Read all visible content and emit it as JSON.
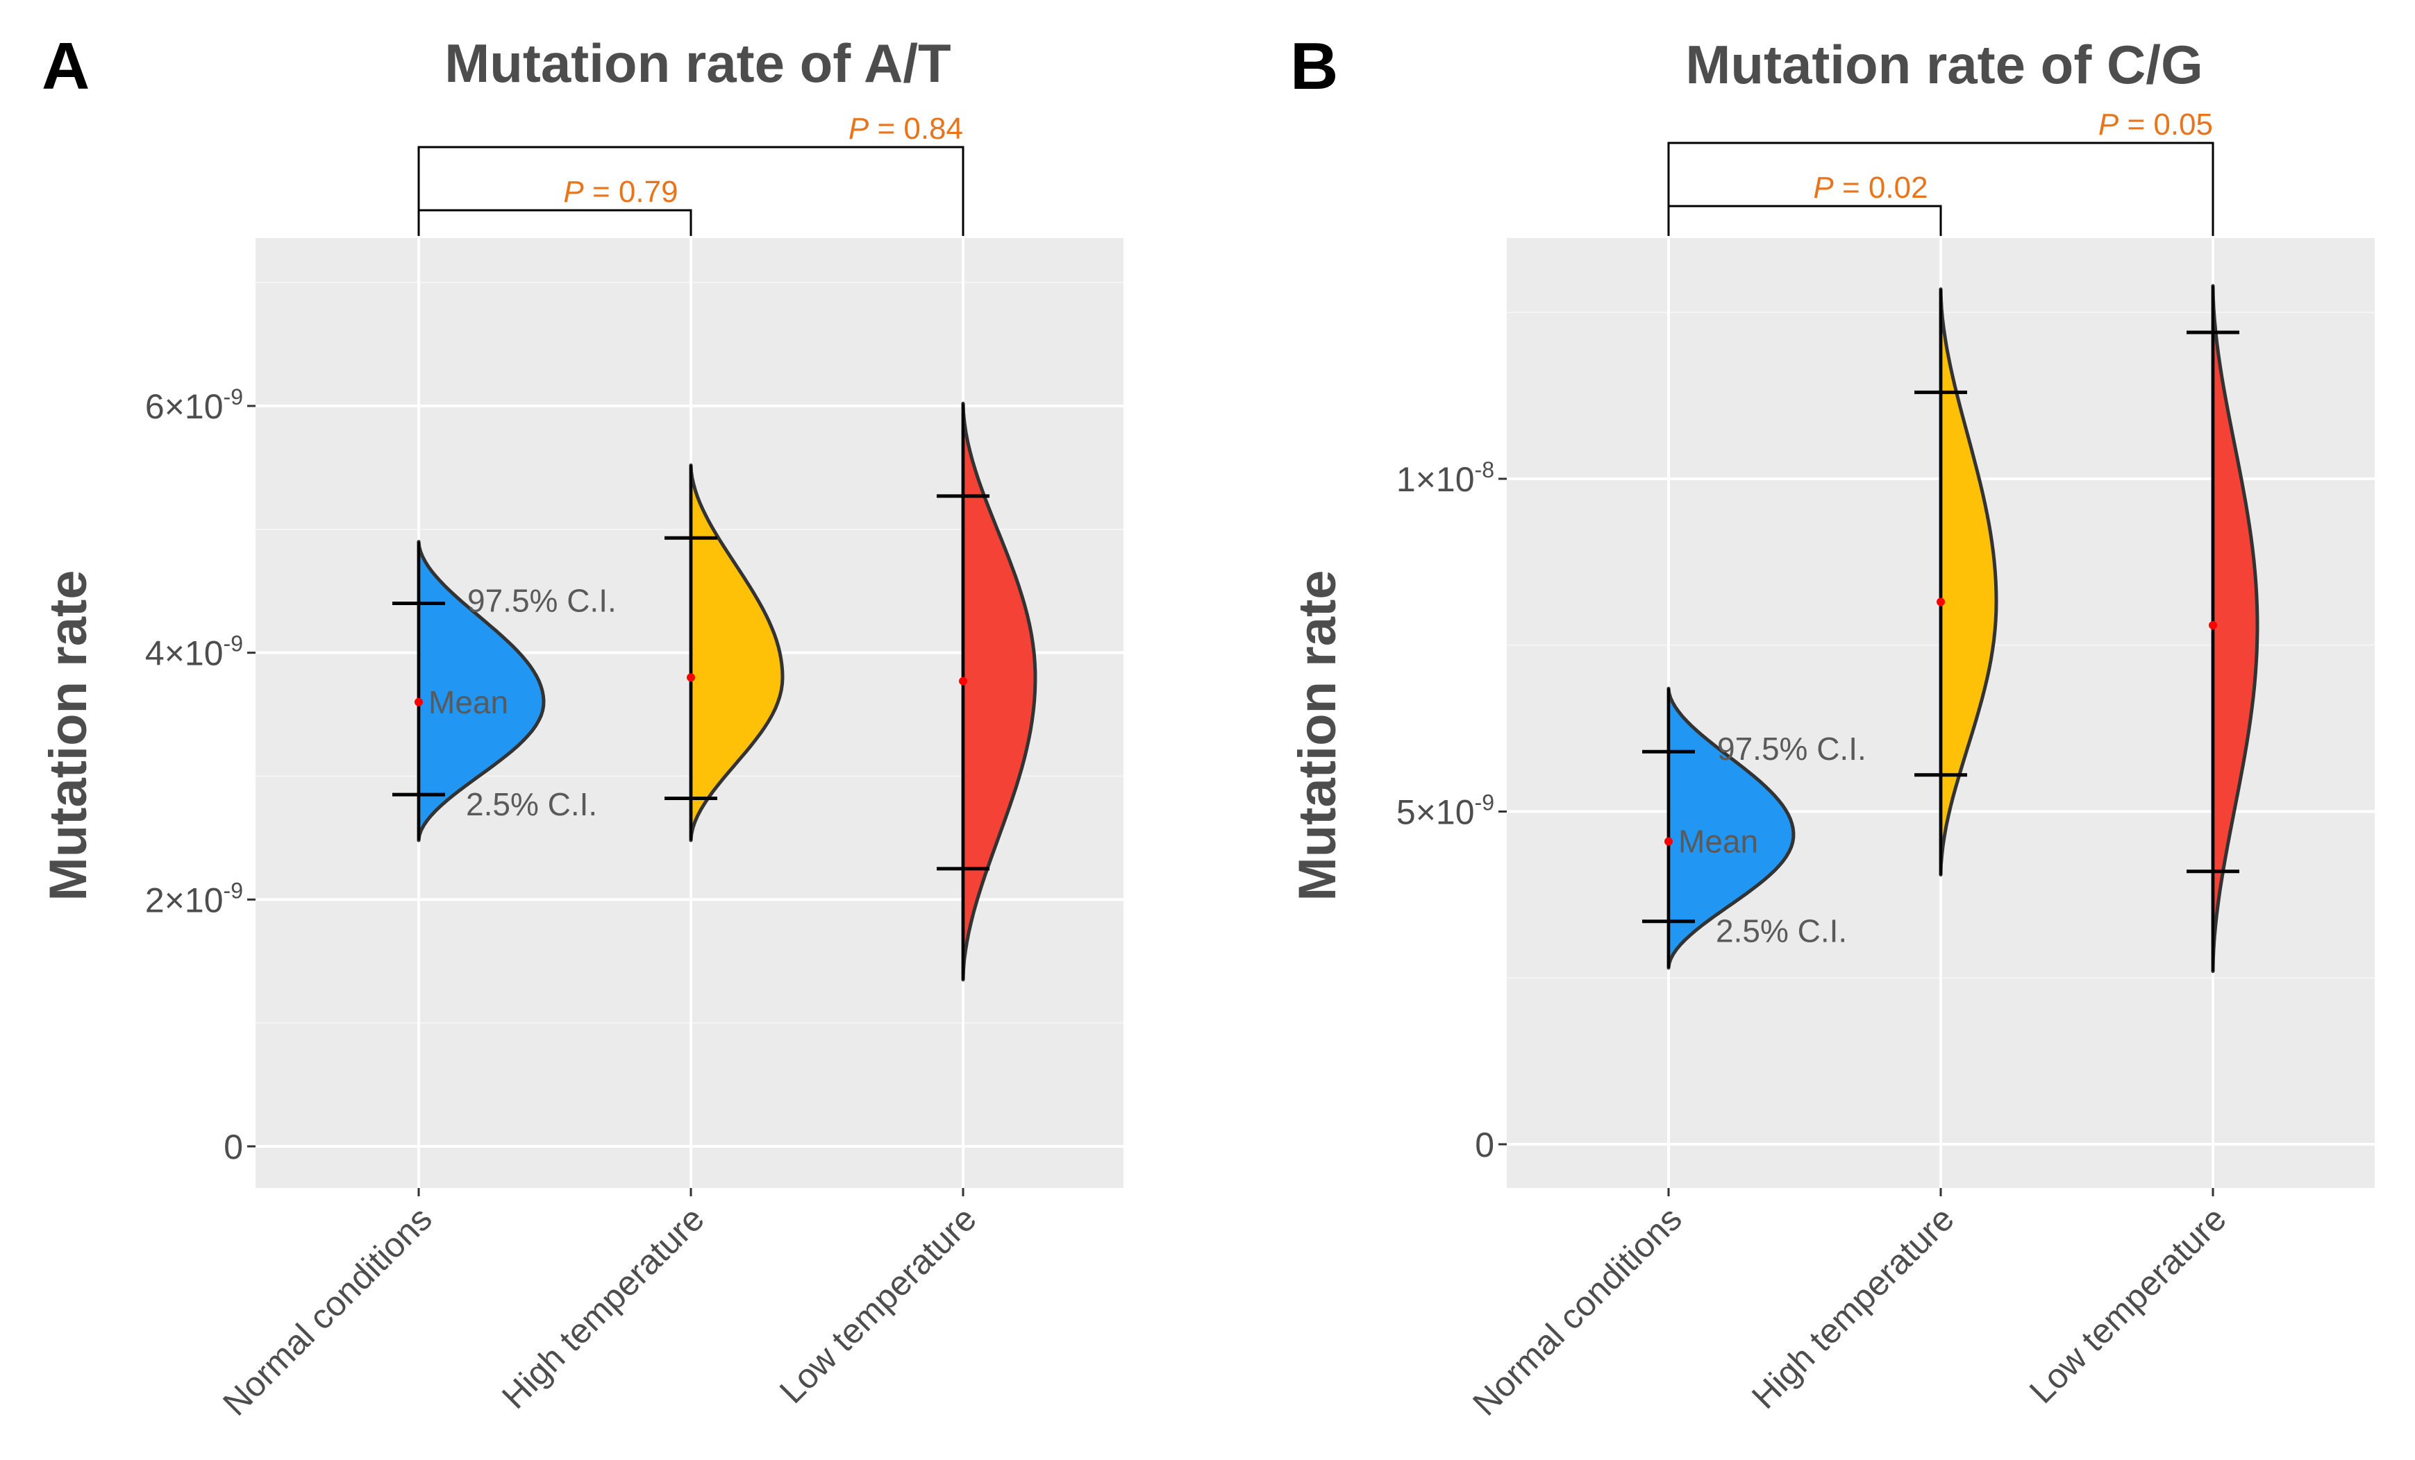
{
  "chart_data": [
    {
      "panel_label": "A",
      "type": "violin",
      "title": "Mutation rate of A/T",
      "ylabel": "Mutation rate",
      "xlabel": "",
      "ylim": [
        -3e-10,
        7.3e-09
      ],
      "yticks": [
        0,
        2e-09,
        4e-09,
        6e-09
      ],
      "ytick_labels": [
        {
          "base": "0",
          "exp": ""
        },
        {
          "base": "2×10",
          "exp": "-9"
        },
        {
          "base": "4×10",
          "exp": "-9"
        },
        {
          "base": "6×10",
          "exp": "-9"
        }
      ],
      "categories": [
        "Normal conditions",
        "High temperature",
        "Low temperature"
      ],
      "series": [
        {
          "name": "Normal conditions",
          "color": "#2196f3",
          "min": 2.48e-09,
          "max": 4.9e-09,
          "mode": 3.6e-09,
          "peak": 0.45,
          "mean": 3.6e-09,
          "ci_low": 2.85e-09,
          "ci_high": 4.4e-09
        },
        {
          "name": "High temperature",
          "color": "#ffc107",
          "min": 2.48e-09,
          "max": 5.52e-09,
          "mode": 3.8e-09,
          "peak": 0.33,
          "mean": 3.8e-09,
          "ci_low": 2.82e-09,
          "ci_high": 4.93e-09
        },
        {
          "name": "Low temperature",
          "color": "#f44336",
          "min": 1.35e-09,
          "max": 6.02e-09,
          "mode": 3.8e-09,
          "peak": 0.26,
          "mean": 3.77e-09,
          "ci_low": 2.25e-09,
          "ci_high": 5.27e-09
        }
      ],
      "annotations": {
        "ci_high": "97.5% C.I.",
        "mean": "Mean",
        "ci_low": "2.5% C.I."
      },
      "comparisons": [
        {
          "from": "Normal conditions",
          "to": "High temperature",
          "p_prefix": "P",
          "p_rest": " = 0.79"
        },
        {
          "from": "Normal conditions",
          "to": "Low temperature",
          "p_prefix": "P",
          "p_rest": " = 0.84"
        }
      ]
    },
    {
      "panel_label": "B",
      "type": "violin",
      "title": "Mutation rate of C/G",
      "ylabel": "Mutation rate",
      "xlabel": "",
      "ylim": [
        -6e-10,
        1.37e-08
      ],
      "yticks": [
        0,
        5e-09,
        1e-08
      ],
      "ytick_labels": [
        {
          "base": "0",
          "exp": ""
        },
        {
          "base": "5×10",
          "exp": "-9"
        },
        {
          "base": "1×10",
          "exp": "-8"
        }
      ],
      "categories": [
        "Normal conditions",
        "High temperature",
        "Low temperature"
      ],
      "series": [
        {
          "name": "Normal conditions",
          "color": "#2196f3",
          "min": 2.65e-09,
          "max": 6.85e-09,
          "mode": 4.65e-09,
          "peak": 0.45,
          "mean": 4.55e-09,
          "ci_low": 3.35e-09,
          "ci_high": 5.9e-09
        },
        {
          "name": "High temperature",
          "color": "#ffc107",
          "min": 4.05e-09,
          "max": 1.285e-08,
          "mode": 8.15e-09,
          "peak": 0.2,
          "mean": 8.15e-09,
          "ci_low": 5.55e-09,
          "ci_high": 1.13e-08
        },
        {
          "name": "Low temperature",
          "color": "#f44336",
          "min": 2.6e-09,
          "max": 1.29e-08,
          "mode": 7.8e-09,
          "peak": 0.16,
          "mean": 7.8e-09,
          "ci_low": 4.1e-09,
          "ci_high": 1.22e-08
        }
      ],
      "annotations": {
        "ci_high": "97.5% C.I.",
        "mean": "Mean",
        "ci_low": "2.5% C.I."
      },
      "comparisons": [
        {
          "from": "Normal conditions",
          "to": "High temperature",
          "p_prefix": "P",
          "p_rest": " = 0.02"
        },
        {
          "from": "Normal conditions",
          "to": "Low temperature",
          "p_prefix": "P",
          "p_rest": " = 0.05"
        }
      ]
    }
  ]
}
